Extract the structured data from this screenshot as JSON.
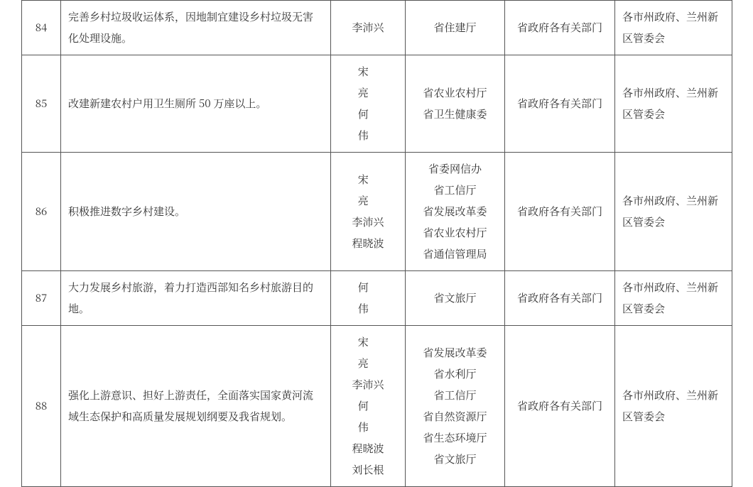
{
  "rows": [
    {
      "idx": "84",
      "task": "完善乡村垃圾收运体系，因地制宜建设乡村垃圾无害化处理设施。",
      "names": [
        {
          "t": "李沛兴",
          "cls": "n3"
        }
      ],
      "depts": [
        "省住建厅"
      ],
      "col4": "省政府各有关部门",
      "col5": "各市州政府、兰州新区管委会"
    },
    {
      "idx": "85",
      "task": "改建新建农村户用卫生厕所 50 万座以上。",
      "names": [
        {
          "t": "宋　亮",
          "cls": "n2"
        },
        {
          "t": "何　伟",
          "cls": "n2"
        }
      ],
      "depts": [
        "省农业农村厅",
        "省卫生健康委"
      ],
      "col4": "省政府各有关部门",
      "col5": "各市州政府、兰州新区管委会"
    },
    {
      "idx": "86",
      "task": "积极推进数字乡村建设。",
      "names": [
        {
          "t": "宋　亮",
          "cls": "n2"
        },
        {
          "t": "李沛兴",
          "cls": "n3"
        },
        {
          "t": "程晓波",
          "cls": "n3"
        }
      ],
      "depts": [
        "省委网信办",
        "省工信厅",
        "省发展改革委",
        "省农业农村厅",
        "省通信管理局"
      ],
      "col4": "省政府各有关部门",
      "col5": "各市州政府、兰州新区管委会"
    },
    {
      "idx": "87",
      "task": "大力发展乡村旅游，着力打造西部知名乡村旅游目的地。",
      "names": [
        {
          "t": "何　伟",
          "cls": "n2"
        }
      ],
      "depts": [
        "省文旅厅"
      ],
      "col4": "省政府各有关部门",
      "col5": "各市州政府、兰州新区管委会"
    },
    {
      "idx": "88",
      "task": "强化上游意识、担好上游责任，全面落实国家黄河流域生态保护和高质量发展规划纲要及我省规划。",
      "names": [
        {
          "t": "宋　亮",
          "cls": "n2"
        },
        {
          "t": "李沛兴",
          "cls": "n3"
        },
        {
          "t": "何　伟",
          "cls": "n2"
        },
        {
          "t": "程晓波",
          "cls": "n3"
        },
        {
          "t": "刘长根",
          "cls": "n3"
        }
      ],
      "depts": [
        "省发展改革委",
        "省水利厅",
        "省工信厅",
        "省自然资源厅",
        "省生态环境厅",
        "省文旅厅"
      ],
      "col4": "省政府各有关部门",
      "col5": "各市州政府、兰州新区管委会"
    }
  ]
}
